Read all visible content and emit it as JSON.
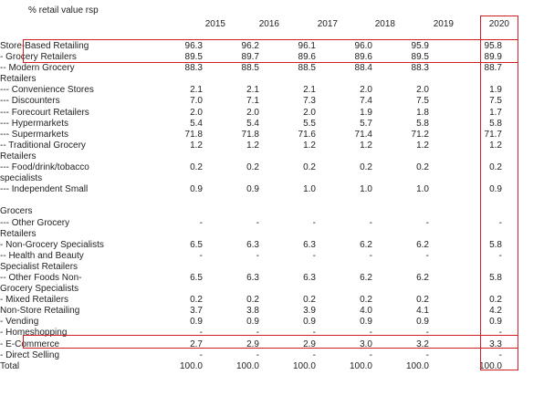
{
  "unit_label": "% retail value rsp",
  "years": [
    "2015",
    "2016",
    "2017",
    "2018",
    "2019",
    "2020"
  ],
  "rows": [
    {
      "label": "Store-Based Retailing",
      "values": [
        "96.3",
        "96.2",
        "96.1",
        "96.0",
        "95.9",
        "95.8"
      ]
    },
    {
      "label": "- Grocery Retailers",
      "values": [
        "89.5",
        "89.7",
        "89.6",
        "89.6",
        "89.5",
        "89.9"
      ]
    },
    {
      "label": "-- Modern Grocery",
      "values": [
        "88.3",
        "88.5",
        "88.5",
        "88.4",
        "88.3",
        "88.7"
      ]
    },
    {
      "label": "Retailers",
      "values": [
        "",
        "",
        "",
        "",
        "",
        ""
      ]
    },
    {
      "label": "--- Convenience Stores",
      "values": [
        "2.1",
        "2.1",
        "2.1",
        "2.0",
        "2.0",
        "1.9"
      ]
    },
    {
      "label": "--- Discounters",
      "values": [
        "7.0",
        "7.1",
        "7.3",
        "7.4",
        "7.5",
        "7.5"
      ]
    },
    {
      "label": "--- Forecourt Retailers",
      "values": [
        "2.0",
        "2.0",
        "2.0",
        "1.9",
        "1.8",
        "1.7"
      ]
    },
    {
      "label": "--- Hypermarkets",
      "values": [
        "5.4",
        "5.4",
        "5.5",
        "5.7",
        "5.8",
        "5.8"
      ]
    },
    {
      "label": "--- Supermarkets",
      "values": [
        "71.8",
        "71.8",
        "71.6",
        "71.4",
        "71.2",
        "71.7"
      ]
    },
    {
      "label": "-- Traditional Grocery",
      "values": [
        "1.2",
        "1.2",
        "1.2",
        "1.2",
        "1.2",
        "1.2"
      ]
    },
    {
      "label": "Retailers",
      "values": [
        "",
        "",
        "",
        "",
        "",
        ""
      ]
    },
    {
      "label": "--- Food/drink/tobacco",
      "values": [
        "0.2",
        "0.2",
        "0.2",
        "0.2",
        "0.2",
        "0.2"
      ]
    },
    {
      "label": "specialists",
      "values": [
        "",
        "",
        "",
        "",
        "",
        ""
      ]
    },
    {
      "label": "--- Independent Small",
      "values": [
        "0.9",
        "0.9",
        "1.0",
        "1.0",
        "1.0",
        "0.9"
      ]
    },
    {
      "label": "",
      "values": [
        "",
        "",
        "",
        "",
        "",
        ""
      ]
    },
    {
      "label": "Grocers",
      "values": [
        "",
        "",
        "",
        "",
        "",
        ""
      ]
    },
    {
      "label": "--- Other Grocery",
      "values": [
        "-",
        "-",
        "-",
        "-",
        "-",
        "-"
      ]
    },
    {
      "label": "Retailers",
      "values": [
        "",
        "",
        "",
        "",
        "",
        ""
      ]
    },
    {
      "label": "- Non-Grocery Specialists",
      "values": [
        "6.5",
        "6.3",
        "6.3",
        "6.2",
        "6.2",
        "5.8"
      ]
    },
    {
      "label": "-- Health and Beauty",
      "values": [
        "-",
        "-",
        "-",
        "-",
        "-",
        "-"
      ]
    },
    {
      "label": "Specialist Retailers",
      "values": [
        "",
        "",
        "",
        "",
        "",
        ""
      ]
    },
    {
      "label": "-- Other Foods Non-",
      "values": [
        "6.5",
        "6.3",
        "6.3",
        "6.2",
        "6.2",
        "5.8"
      ]
    },
    {
      "label": "Grocery Specialists",
      "values": [
        "",
        "",
        "",
        "",
        "",
        ""
      ]
    },
    {
      "label": "- Mixed Retailers",
      "values": [
        "0.2",
        "0.2",
        "0.2",
        "0.2",
        "0.2",
        "0.2"
      ]
    },
    {
      "label": "Non-Store Retailing",
      "values": [
        "3.7",
        "3.8",
        "3.9",
        "4.0",
        "4.1",
        "4.2"
      ]
    },
    {
      "label": "- Vending",
      "values": [
        "0.9",
        "0.9",
        "0.9",
        "0.9",
        "0.9",
        "0.9"
      ]
    },
    {
      "label": "- Homeshopping",
      "values": [
        "-",
        "-",
        "-",
        "-",
        "-",
        "-"
      ]
    },
    {
      "label": "- E-Commerce",
      "values": [
        "2.7",
        "2.9",
        "2.9",
        "3.0",
        "3.2",
        "3.3"
      ]
    },
    {
      "label": "- Direct Selling",
      "values": [
        "-",
        "-",
        "-",
        "-",
        "-",
        "-"
      ]
    },
    {
      "label": "Total",
      "values": [
        "100.0",
        "100.0",
        "100.0",
        "100.0",
        "100.0",
        "100.0"
      ]
    }
  ],
  "highlight_color": "#d21f26"
}
